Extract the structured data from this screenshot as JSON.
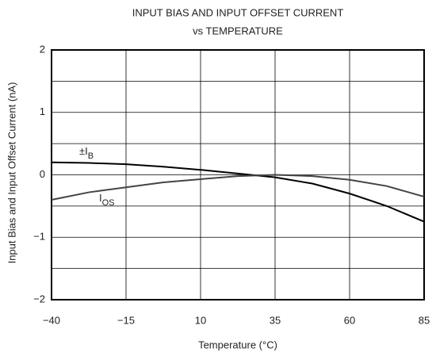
{
  "chart_data": {
    "type": "line",
    "title": [
      "INPUT BIAS AND INPUT OFFSET CURRENT",
      "vs TEMPERATURE"
    ],
    "x_label": "Temperature (°C)",
    "y_label": "Input Bias and Input Offset Current (nA)",
    "xlim": [
      -40,
      85
    ],
    "xticks": [
      {
        "value": -40,
        "label": "−40"
      },
      {
        "value": -15,
        "label": "−15"
      },
      10,
      35,
      60,
      85
    ],
    "ylim": [
      -2,
      2
    ],
    "yticks": [
      {
        "value": -2,
        "label": "−2"
      },
      {
        "value": -1,
        "label": "−1"
      },
      0,
      1,
      2
    ],
    "y_minor_grid": [
      -1.5,
      -0.5,
      0.5,
      1.5
    ],
    "grid": true,
    "series": [
      {
        "label": "±I",
        "label_sub": "B",
        "color": "#000000",
        "x": [
          -40,
          -27.5,
          -15,
          -2.5,
          10,
          22.5,
          35,
          47.5,
          60,
          72.5,
          85
        ],
        "values": [
          0.2,
          0.19,
          0.17,
          0.13,
          0.08,
          0.02,
          -0.04,
          -0.14,
          -0.3,
          -0.5,
          -0.75
        ]
      },
      {
        "label": "I",
        "label_sub": "OS",
        "color": "#444444",
        "x": [
          -40,
          -27.5,
          -15,
          -2.5,
          10,
          22.5,
          35,
          47.5,
          60,
          72.5,
          85
        ],
        "values": [
          -0.4,
          -0.28,
          -0.2,
          -0.12,
          -0.07,
          -0.02,
          0,
          -0.02,
          -0.08,
          -0.18,
          -0.35
        ]
      }
    ]
  }
}
